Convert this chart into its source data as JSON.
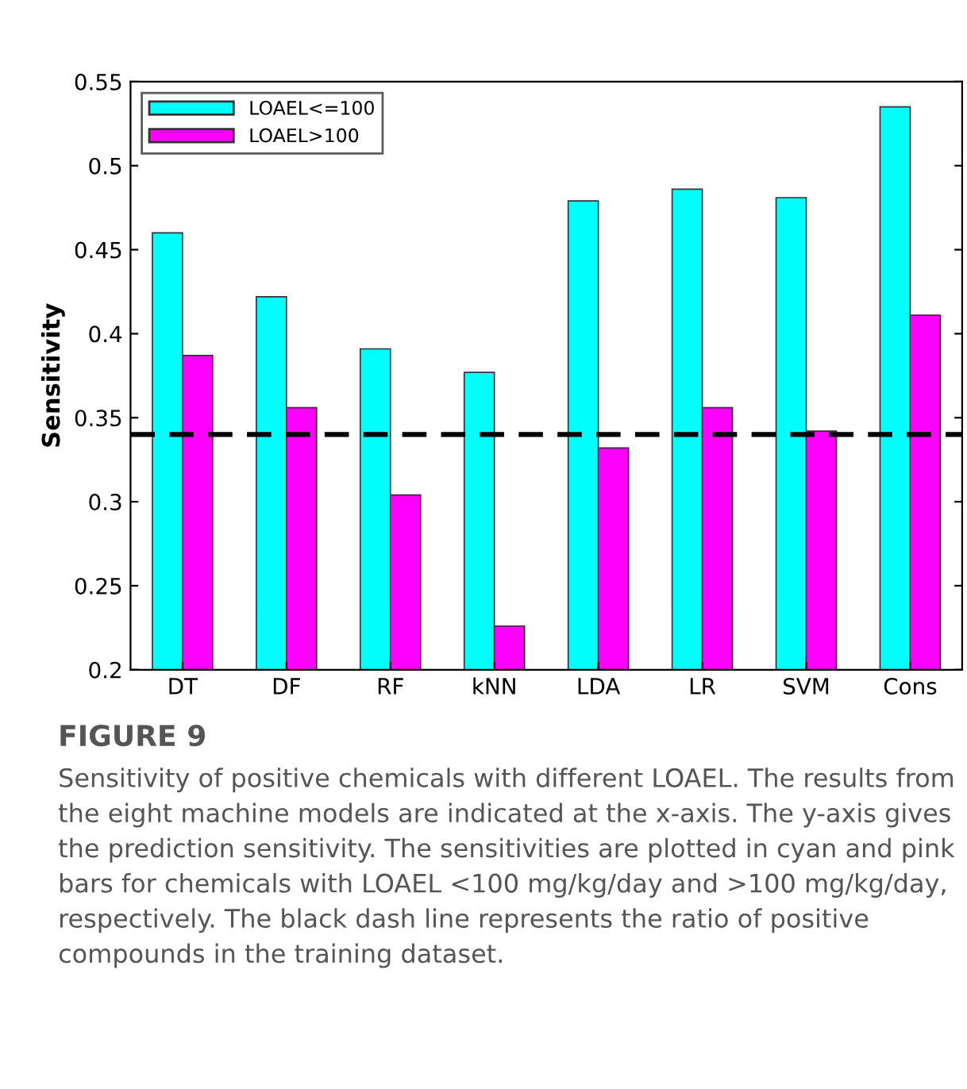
{
  "chart_data": {
    "type": "bar",
    "title": "FIGURE 9",
    "annotations": [
      "Sensitivity of positive chemicals with different LOAEL. The results from the eight machine models are indicated at the x-axis. The y-axis gives the prediction sensitivity. The sensitivities are plotted in cyan and pink bars for chemicals with LOAEL <100 mg/kg/day and >100 mg/kg/day, respectively. The black dash line represents the ratio of positive compounds in the training dataset."
    ],
    "ylabel": "Sensitivity",
    "categories": [
      "DT",
      "DF",
      "RF",
      "kNN",
      "LDA",
      "LR",
      "SVM",
      "Cons"
    ],
    "series": [
      {
        "name": "LOAEL<=100",
        "color": "#00ffff",
        "values": [
          0.46,
          0.422,
          0.391,
          0.377,
          0.479,
          0.486,
          0.481,
          0.535
        ]
      },
      {
        "name": "LOAEL>100",
        "color": "#ff00ff",
        "values": [
          0.387,
          0.356,
          0.304,
          0.226,
          0.332,
          0.356,
          0.342,
          0.411
        ]
      }
    ],
    "ylim": [
      0.2,
      0.55
    ],
    "yticks": [
      0.2,
      0.25,
      0.3,
      0.35,
      0.4,
      0.45,
      0.5,
      0.55
    ],
    "ref_lines": [
      {
        "axis": "y",
        "value": 0.34,
        "color": "#000000",
        "line_style": "dashed"
      }
    ],
    "legend": "top left",
    "grid": false
  }
}
